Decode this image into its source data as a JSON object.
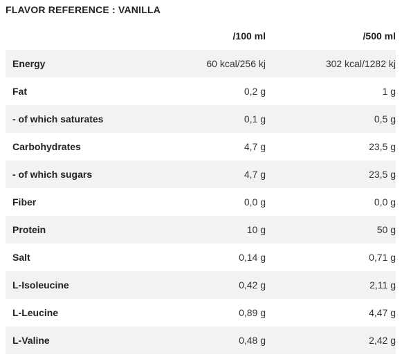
{
  "title": "FLAVOR REFERENCE : VANILLA",
  "columns": [
    "",
    "/100 ml",
    "/500 ml"
  ],
  "rows": [
    {
      "name": "Energy",
      "per100": "60 kcal/256 kj",
      "per500": "302 kcal/1282 kj"
    },
    {
      "name": "Fat",
      "per100": "0,2 g",
      "per500": "1 g"
    },
    {
      "name": "- of which saturates",
      "per100": "0,1 g",
      "per500": "0,5 g"
    },
    {
      "name": "Carbohydrates",
      "per100": "4,7 g",
      "per500": "23,5 g"
    },
    {
      "name": "- of which sugars",
      "per100": "4,7 g",
      "per500": "23,5 g"
    },
    {
      "name": "Fiber",
      "per100": "0,0 g",
      "per500": "0,0 g"
    },
    {
      "name": "Protein",
      "per100": "10 g",
      "per500": "50 g"
    },
    {
      "name": "Salt",
      "per100": "0,14 g",
      "per500": "0,71 g"
    },
    {
      "name": "L-Isoleucine",
      "per100": "0,42 g",
      "per500": "2,11 g"
    },
    {
      "name": "L-Leucine",
      "per100": "0,89 g",
      "per500": "4,47 g"
    },
    {
      "name": "L-Valine",
      "per100": "0,48 g",
      "per500": "2,42 g"
    }
  ]
}
